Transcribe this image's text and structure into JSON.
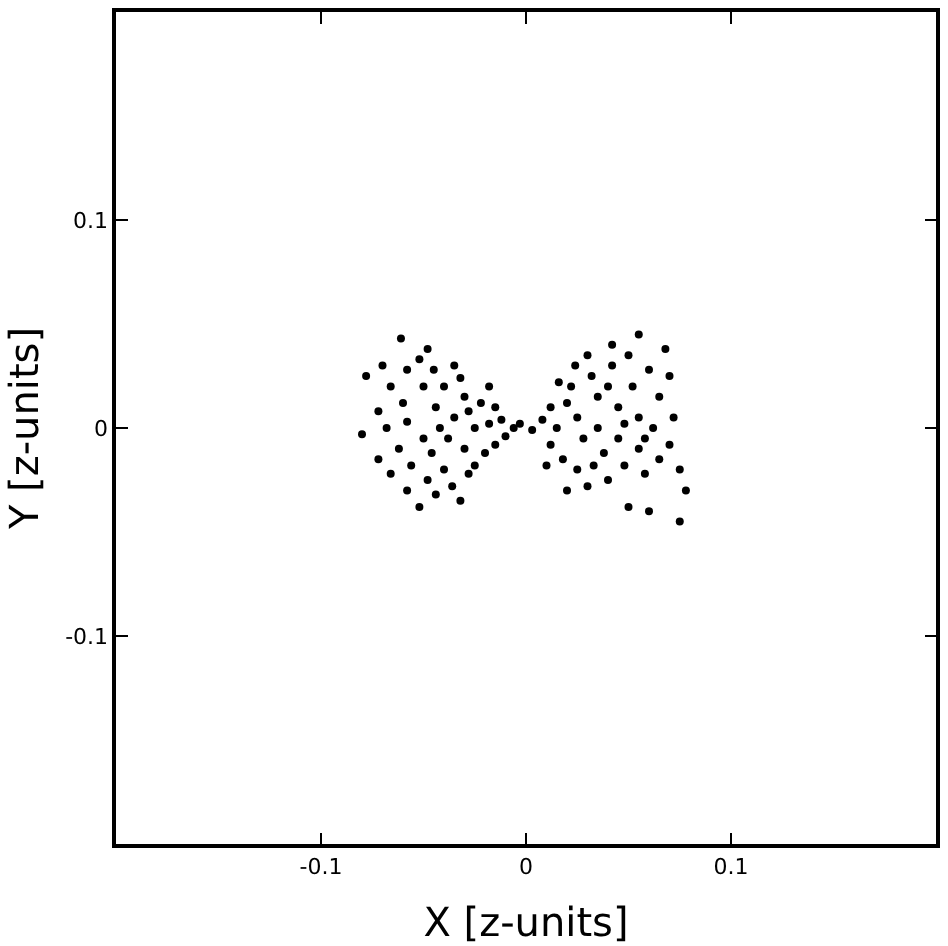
{
  "chart_data": {
    "type": "scatter",
    "xlabel": "X [z-units]",
    "ylabel": "Y [z-units]",
    "xlim": [
      -0.2,
      0.2
    ],
    "ylim": [
      -0.2,
      0.2
    ],
    "xticks": [
      -0.1,
      0,
      0.1
    ],
    "yticks": [
      -0.1,
      0,
      0.1
    ],
    "marker": "circle",
    "series": [
      {
        "color": "#000000",
        "x": [
          -0.061,
          -0.07,
          -0.078,
          -0.066,
          -0.058,
          -0.052,
          -0.048,
          -0.045,
          -0.05,
          -0.06,
          -0.072,
          -0.08,
          -0.068,
          -0.058,
          -0.05,
          -0.062,
          -0.072,
          -0.066,
          -0.056,
          -0.048,
          -0.058,
          -0.052,
          -0.044,
          -0.04,
          -0.036,
          -0.04,
          -0.035,
          -0.032,
          -0.03,
          -0.028,
          -0.035,
          -0.038,
          -0.03,
          -0.025,
          -0.02,
          -0.025,
          -0.022,
          -0.018,
          -0.015,
          -0.012,
          -0.01,
          -0.015,
          -0.006,
          -0.003,
          -0.044,
          -0.042,
          -0.046,
          -0.032,
          -0.028,
          -0.018,
          0.003,
          0.008,
          0.012,
          0.015,
          0.012,
          0.018,
          0.02,
          0.022,
          0.025,
          0.028,
          0.025,
          0.03,
          0.032,
          0.035,
          0.035,
          0.038,
          0.04,
          0.042,
          0.045,
          0.045,
          0.048,
          0.05,
          0.052,
          0.055,
          0.055,
          0.058,
          0.06,
          0.062,
          0.065,
          0.068,
          0.07,
          0.072,
          0.075,
          0.078,
          0.06,
          0.075,
          0.05,
          0.042,
          0.055,
          0.065,
          0.03,
          0.02,
          0.04,
          0.048,
          0.058,
          0.07,
          0.033,
          0.016,
          0.024,
          0.01
        ],
        "values": [
          0.043,
          0.03,
          0.025,
          0.02,
          0.028,
          0.033,
          0.038,
          0.028,
          0.02,
          0.012,
          0.008,
          -0.003,
          0.0,
          0.003,
          -0.005,
          -0.01,
          -0.015,
          -0.022,
          -0.018,
          -0.025,
          -0.03,
          -0.038,
          -0.032,
          -0.02,
          -0.028,
          0.02,
          0.03,
          0.024,
          0.015,
          0.008,
          0.005,
          -0.005,
          -0.01,
          -0.018,
          -0.012,
          0.0,
          0.012,
          0.02,
          0.01,
          0.004,
          -0.004,
          -0.008,
          0.0,
          0.002,
          0.01,
          0.0,
          -0.012,
          -0.035,
          -0.022,
          0.002,
          -0.001,
          0.004,
          0.01,
          0.0,
          -0.008,
          -0.015,
          0.012,
          0.02,
          0.005,
          -0.005,
          -0.02,
          -0.028,
          0.025,
          0.015,
          0.0,
          -0.012,
          -0.025,
          0.03,
          0.01,
          -0.005,
          -0.018,
          0.035,
          0.02,
          0.005,
          -0.01,
          -0.022,
          0.028,
          0.0,
          -0.015,
          0.038,
          0.025,
          0.005,
          -0.02,
          -0.03,
          -0.04,
          -0.045,
          -0.038,
          0.04,
          0.045,
          0.015,
          0.035,
          -0.03,
          0.02,
          0.002,
          -0.005,
          -0.008,
          -0.018,
          0.022,
          0.03,
          -0.018
        ]
      }
    ]
  }
}
